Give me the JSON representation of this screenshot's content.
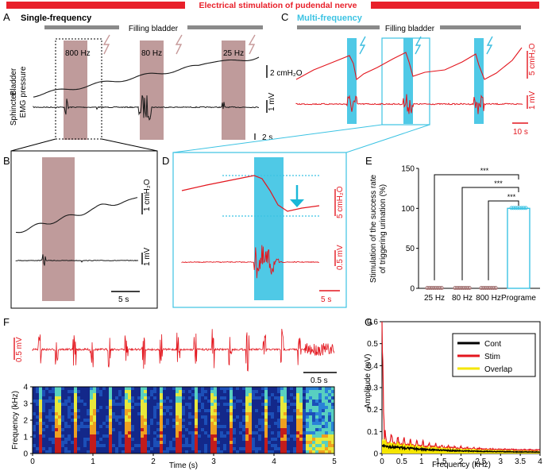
{
  "figure": {
    "title": "Electrical stimulation of pudendal nerve",
    "filling_label": "Filling bladder",
    "colors": {
      "title_red": "#e8202a",
      "trace_black": "#1a1a1a",
      "trace_red": "#e3161e",
      "stim_brown": "#b48a8a",
      "stim_cyan": "#3cc3e3",
      "bolt_brown": "#c79a9a",
      "bolt_cyan": "#3cbde0",
      "bar_gray": "#8a8a8a",
      "overlap_yellow": "#f5e600"
    }
  },
  "panels": {
    "A": {
      "letter": "A",
      "heading": "Single-frequency",
      "ylabel_pressure_1": "Bladder",
      "ylabel_pressure_2": "pressure",
      "ylabel_emg_1": "Sphincter",
      "ylabel_emg_2": "EMG",
      "stim_labels": [
        "800 Hz",
        "80 Hz",
        "25 Hz"
      ],
      "scale_pressure": "2 cmH₂O",
      "scale_emg": "1 mV",
      "scale_time": "2 s"
    },
    "B": {
      "letter": "B",
      "scale_pressure": "1 cmH₂O",
      "scale_emg": "1 mV",
      "scale_time": "5 s"
    },
    "C": {
      "letter": "C",
      "heading": "Multi-frequency",
      "scale_pressure": "5 cmH₂O",
      "scale_emg": "1 mV",
      "scale_time": "10 s"
    },
    "D": {
      "letter": "D",
      "scale_pressure": "5 cmH₂O",
      "scale_emg": "0.5 mV",
      "scale_time": "5 s"
    },
    "F": {
      "letter": "F",
      "scale_emg": "0.5 mV",
      "scale_time": "0.5 s",
      "spec_ylabel": "Frequency (kHz)",
      "spec_xlabel": "Time (s)",
      "spec_yticks": [
        "0",
        "1",
        "2",
        "3",
        "4"
      ],
      "spec_xticks": [
        "0",
        "1",
        "2",
        "3",
        "4",
        "5"
      ]
    },
    "G": {
      "letter": "G"
    }
  },
  "chart_data": [
    {
      "panel": "E",
      "letter": "E",
      "type": "bar",
      "ylabel_1": "Stimulation of the success rate",
      "ylabel_2": "of triggering urination (%)",
      "categories": [
        "25 Hz",
        "80 Hz",
        "800 Hz",
        "Programe"
      ],
      "values": [
        0,
        0,
        0,
        100
      ],
      "ylim": [
        0,
        150
      ],
      "yticks": [
        "0",
        "50",
        "100",
        "150"
      ],
      "significance": [
        "***",
        "***",
        "***"
      ]
    },
    {
      "panel": "G",
      "type": "line",
      "title": "",
      "ylabel": "Amplitude (mV)",
      "xlabel": "Frequency (kHz)",
      "xlim": [
        0,
        4
      ],
      "ylim": [
        0,
        0.6
      ],
      "xticks": [
        "0",
        "0.5",
        "1",
        "1.5",
        "2",
        "2.5",
        "3",
        "3.5",
        "4"
      ],
      "yticks": [
        "0",
        "0.1",
        "0.2",
        "0.3",
        "0.4",
        "0.5",
        "0.6"
      ],
      "legend_position": "top-right",
      "series": [
        {
          "name": "Cont",
          "color": "#000000"
        },
        {
          "name": "Stim",
          "color": "#e3161e"
        },
        {
          "name": "Overlap",
          "color": "#f5e600"
        }
      ]
    }
  ]
}
